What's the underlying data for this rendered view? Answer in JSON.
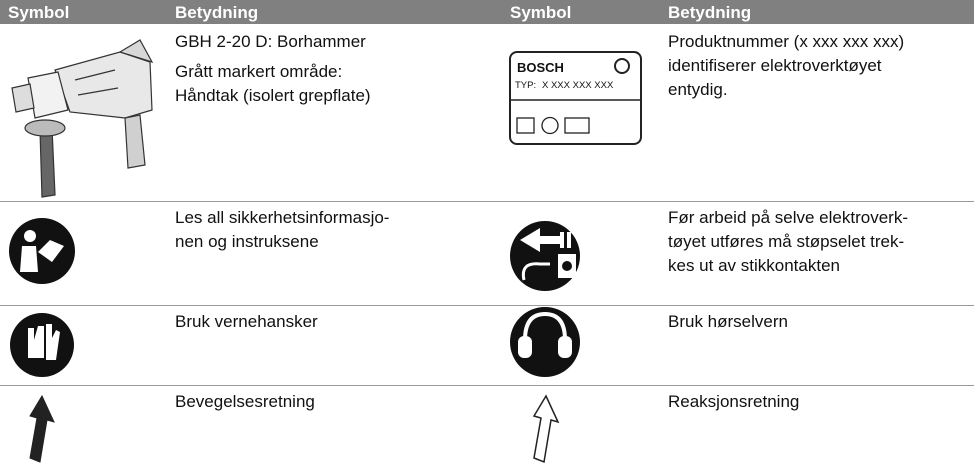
{
  "header": {
    "columns": [
      "Symbol",
      "Betydning",
      "Symbol",
      "Betydning"
    ]
  },
  "rows": [
    {
      "left": {
        "meaning": [
          [
            "GBH 2-20 D: Borhammer"
          ],
          [
            "Grått markert område:",
            "Håndtak (isolert grepflate)"
          ]
        ]
      },
      "right": {
        "meaning": [
          [
            "Produktnummer (x xxx xxx xxx)",
            "identifiserer elektroverktøyet",
            "entydig."
          ]
        ],
        "nameplate": {
          "brand": "BOSCH",
          "type_label": "TYP:",
          "type_number": "X XXX XXX XXX"
        }
      }
    },
    {
      "left": {
        "meaning": [
          [
            "Les all sikkerhetsinformasjo-",
            "nen og instruksene"
          ]
        ]
      },
      "right": {
        "meaning": [
          [
            "Før arbeid på selve elektroverk-",
            "tøyet utføres må støpselet trek-",
            "kes ut av stikkontakten"
          ]
        ]
      }
    },
    {
      "left": {
        "meaning": [
          [
            "Bruk vernehansker"
          ]
        ]
      },
      "right": {
        "meaning": [
          [
            "Bruk hørselvern"
          ]
        ]
      }
    },
    {
      "left": {
        "meaning": [
          [
            "Bevegelsesretning"
          ]
        ]
      },
      "right": {
        "meaning": [
          [
            "Reaksjonsretning"
          ]
        ]
      }
    }
  ]
}
